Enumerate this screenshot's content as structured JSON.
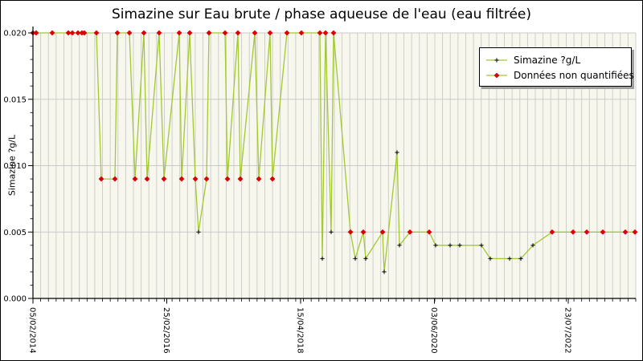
{
  "figure": {
    "title": "Simazine sur Eau brute / phase aqueuse de l'eau (eau filtrée)"
  },
  "legend": {
    "entries": [
      {
        "label": "Simazine ?g/L",
        "marker": "plus-icon"
      },
      {
        "label": "Données non quantifiées",
        "marker": "diamond-icon"
      }
    ]
  },
  "chart_data": {
    "type": "line",
    "title": "Simazine sur Eau brute / phase aqueuse de l'eau (eau filtrée)",
    "xlabel": "",
    "ylabel": "Simazine ?g/L",
    "ylim": [
      0.0,
      0.02
    ],
    "y_tick_labels": [
      "0.000",
      "0.005",
      "0.010",
      "0.015",
      "0.020"
    ],
    "y_minor_step": 0.001,
    "x_tick_labels": [
      "05/02/2014",
      "25/02/2016",
      "15/04/2018",
      "03/06/2020",
      "23/07/2022"
    ],
    "grid": "vertical minor gridlines + horizontal major gridlines",
    "legend_position": "top-right",
    "colors": {
      "line": "#a2c832",
      "non_quantified_marker": "#dd0000",
      "quantified_marker": "#000000",
      "plot_background": "#f7f7ee",
      "gridline": "#c9c9c9",
      "axis": "#000000"
    },
    "series": [
      {
        "name": "Simazine ?g/L",
        "unit": "?g/L",
        "note": "points = [x_position_px, value_ug_per_L, non_quantified_flag]",
        "points": [
          [
            40,
            0.02,
            1
          ],
          [
            44,
            0.02,
            1
          ],
          [
            64,
            0.02,
            1
          ],
          [
            84,
            0.02,
            1
          ],
          [
            89,
            0.02,
            1
          ],
          [
            96,
            0.02,
            1
          ],
          [
            101,
            0.02,
            1
          ],
          [
            104,
            0.02,
            1
          ],
          [
            119,
            0.02,
            1
          ],
          [
            125,
            0.009,
            1
          ],
          [
            142,
            0.009,
            1
          ],
          [
            145,
            0.02,
            1
          ],
          [
            160,
            0.02,
            1
          ],
          [
            167,
            0.009,
            1
          ],
          [
            178,
            0.02,
            1
          ],
          [
            182,
            0.009,
            1
          ],
          [
            197,
            0.02,
            1
          ],
          [
            203,
            0.009,
            1
          ],
          [
            222,
            0.02,
            1
          ],
          [
            225,
            0.009,
            1
          ],
          [
            235,
            0.02,
            1
          ],
          [
            242,
            0.009,
            1
          ],
          [
            246,
            0.005,
            0
          ],
          [
            256,
            0.009,
            1
          ],
          [
            259,
            0.02,
            1
          ],
          [
            279,
            0.02,
            1
          ],
          [
            282,
            0.009,
            1
          ],
          [
            295,
            0.02,
            1
          ],
          [
            298,
            0.009,
            1
          ],
          [
            316,
            0.02,
            1
          ],
          [
            321,
            0.009,
            1
          ],
          [
            335,
            0.02,
            1
          ],
          [
            338,
            0.009,
            1
          ],
          [
            356,
            0.02,
            1
          ],
          [
            374,
            0.02,
            1
          ],
          [
            397,
            0.02,
            1
          ],
          [
            400,
            0.003,
            0
          ],
          [
            404,
            0.02,
            1
          ],
          [
            411,
            0.005,
            0
          ],
          [
            414,
            0.02,
            1
          ],
          [
            435,
            0.005,
            1
          ],
          [
            441,
            0.003,
            0
          ],
          [
            451,
            0.005,
            1
          ],
          [
            454,
            0.003,
            0
          ],
          [
            475,
            0.005,
            1
          ],
          [
            477,
            0.002,
            0
          ],
          [
            493,
            0.011,
            0
          ],
          [
            496,
            0.004,
            0
          ],
          [
            509,
            0.005,
            1
          ],
          [
            533,
            0.005,
            1
          ],
          [
            541,
            0.004,
            0
          ],
          [
            559,
            0.004,
            0
          ],
          [
            571,
            0.004,
            0
          ],
          [
            598,
            0.004,
            0
          ],
          [
            609,
            0.003,
            0
          ],
          [
            633,
            0.003,
            0
          ],
          [
            647,
            0.003,
            0
          ],
          [
            662,
            0.004,
            0
          ],
          [
            686,
            0.005,
            1
          ],
          [
            712,
            0.005,
            1
          ],
          [
            729,
            0.005,
            1
          ],
          [
            749,
            0.005,
            1
          ],
          [
            777,
            0.005,
            1
          ],
          [
            789,
            0.005,
            1
          ]
        ]
      }
    ]
  }
}
